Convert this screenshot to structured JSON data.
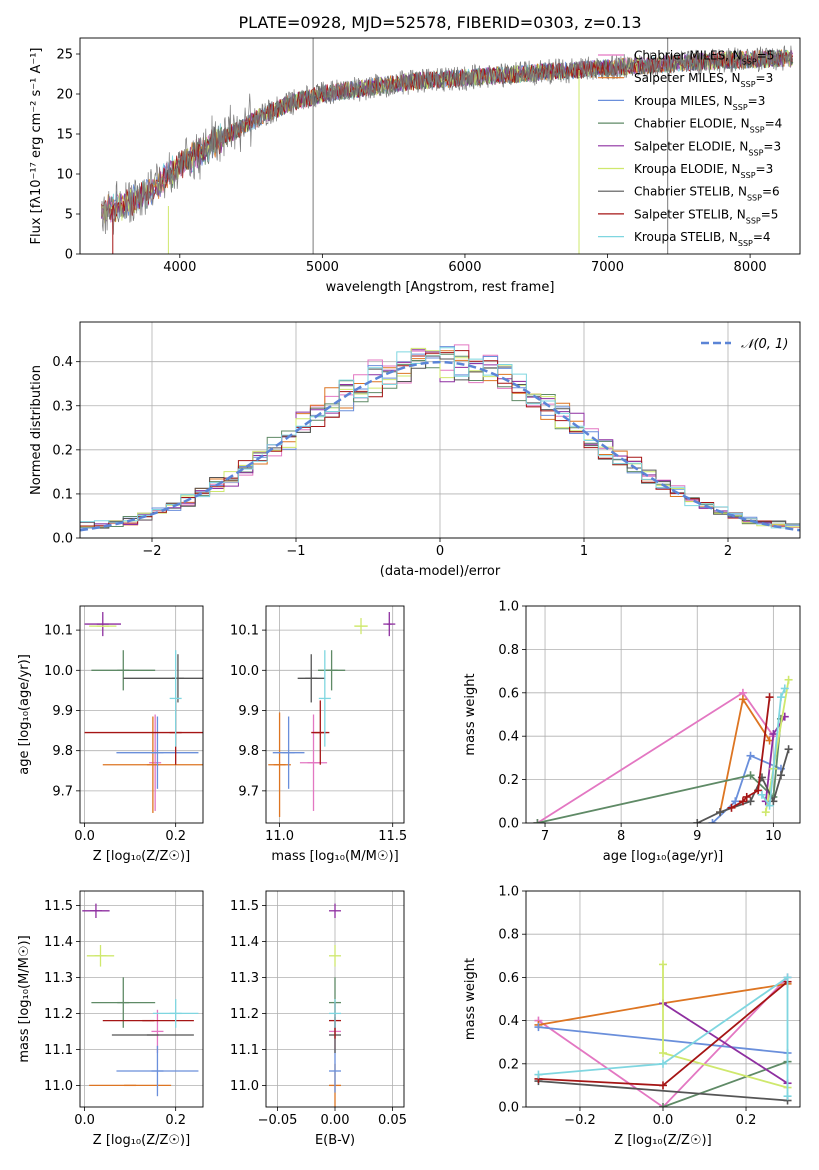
{
  "figure": {
    "title": "PLATE=0928, MJD=52578, FIBERID=0303, z=0.13"
  },
  "colors": {
    "models": [
      "#e377c2",
      "#dd7522",
      "#6a8fdb",
      "#5f8a66",
      "#8e2fa0",
      "#cfe86d",
      "#555555",
      "#a51515",
      "#7fd6e0"
    ],
    "obs": "#7a7a7a",
    "gauss": "#5b84d6"
  },
  "models": [
    {
      "name": "Chabrier MILES",
      "nssp": 5
    },
    {
      "name": "Salpeter MILES",
      "nssp": 3
    },
    {
      "name": "Kroupa MILES",
      "nssp": 3
    },
    {
      "name": "Chabrier ELODIE",
      "nssp": 4
    },
    {
      "name": "Salpeter ELODIE",
      "nssp": 3
    },
    {
      "name": "Kroupa ELODIE",
      "nssp": 3
    },
    {
      "name": "Chabrier STELIB",
      "nssp": 6
    },
    {
      "name": "Salpeter STELIB",
      "nssp": 5
    },
    {
      "name": "Kroupa STELIB",
      "nssp": 4
    }
  ],
  "chart_data": [
    {
      "id": "spectrum",
      "type": "line",
      "xlabel": "wavelength [Angstrom, rest frame]",
      "ylabel": "Flux [fλ10⁻¹⁷ erg cm⁻² s⁻¹ A⁻¹]",
      "xlim": [
        3300,
        8350
      ],
      "ylim": [
        0,
        27
      ],
      "xticks": [
        4000,
        5000,
        6000,
        7000,
        8000
      ],
      "yticks": [
        0,
        5,
        10,
        15,
        20,
        25
      ],
      "legend": "top-right",
      "continuum": {
        "x": [
          3450,
          3600,
          3800,
          4000,
          4200,
          4400,
          4600,
          4800,
          5000,
          5200,
          5400,
          5600,
          5800,
          6000,
          6200,
          6400,
          6600,
          6800,
          7000,
          7200,
          7400,
          7600,
          7800,
          8000,
          8300
        ],
        "y": [
          5.5,
          6.0,
          8.0,
          11.0,
          13.5,
          15.5,
          17.5,
          19.0,
          20.0,
          20.5,
          21.0,
          21.5,
          21.8,
          22.0,
          22.3,
          22.5,
          22.8,
          23.0,
          23.3,
          23.5,
          23.7,
          24.0,
          24.2,
          24.3,
          24.5
        ]
      },
      "spikes": [
        {
          "x": 4935,
          "y0": 0,
          "y1": 27
        },
        {
          "x": 7422,
          "y0": 0,
          "y1": 27
        },
        {
          "x": 6800,
          "y0": 0,
          "y1": 23
        }
      ]
    },
    {
      "id": "residuals",
      "type": "bar",
      "xlabel": "(data-model)/error",
      "ylabel": "Normed distribution",
      "xlim": [
        -2.5,
        2.5
      ],
      "ylim": [
        0,
        0.49
      ],
      "xticks": [
        -2,
        -1,
        0,
        1,
        2
      ],
      "yticks": [
        0.0,
        0.1,
        0.2,
        0.3,
        0.4
      ],
      "grid": true,
      "legend": "top-right",
      "gaussian_label": "𝒩(0, 1)"
    },
    {
      "id": "age-vs-Z",
      "type": "scatter",
      "xlabel": "Z [log₁₀(Z/Z☉)]",
      "ylabel": "age  [log₁₀(age/yr)]",
      "xlim": [
        -0.01,
        0.26
      ],
      "ylim": [
        9.62,
        10.16
      ],
      "xticks": [
        0.0,
        0.2
      ],
      "yticks": [
        9.7,
        9.8,
        9.9,
        10.0,
        10.1
      ],
      "grid": true,
      "points": [
        {
          "x": 0.155,
          "xe": 0.0,
          "y": 9.77,
          "ye": 0.12
        },
        {
          "x": 0.15,
          "xe": 0.11,
          "y": 9.765,
          "ye": 0.12
        },
        {
          "x": 0.16,
          "xe": 0.09,
          "y": 9.795,
          "ye": 0.09
        },
        {
          "x": 0.085,
          "xe": 0.07,
          "y": 10.0,
          "ye": 0.05
        },
        {
          "x": 0.04,
          "xe": 0.04,
          "y": 10.115,
          "ye": 0.03
        },
        {
          "x": 0.04,
          "xe": 0.03,
          "y": 10.11,
          "ye": 0.0
        },
        {
          "x": 0.205,
          "xe": 0.12,
          "y": 9.98,
          "ye": 0.06
        },
        {
          "x": 0.2,
          "xe": 0.2,
          "y": 9.845,
          "ye": 0.08
        },
        {
          "x": 0.2,
          "xe": 0.0,
          "y": 9.93,
          "ye": 0.12
        }
      ]
    },
    {
      "id": "age-vs-mass",
      "type": "scatter",
      "xlabel": "mass [log₁₀(M/M☉)]",
      "ylabel": "",
      "xlim": [
        10.94,
        11.55
      ],
      "ylim": [
        9.62,
        10.16
      ],
      "xticks": [
        11.0,
        11.5
      ],
      "yticks": [
        9.7,
        9.8,
        9.9,
        10.0,
        10.1
      ],
      "grid": true,
      "points": [
        {
          "x": 11.15,
          "xe": 0.06,
          "y": 9.77,
          "ye": 0.12
        },
        {
          "x": 11.0,
          "xe": 0.05,
          "y": 9.765,
          "ye": 0.13
        },
        {
          "x": 11.04,
          "xe": 0.07,
          "y": 9.795,
          "ye": 0.09
        },
        {
          "x": 11.23,
          "xe": 0.06,
          "y": 10.0,
          "ye": 0.05
        },
        {
          "x": 11.485,
          "xe": 0.01,
          "y": 10.115,
          "ye": 0.03
        },
        {
          "x": 11.36,
          "xe": 0.03,
          "y": 10.11,
          "ye": 0.02
        },
        {
          "x": 11.14,
          "xe": 0.06,
          "y": 9.98,
          "ye": 0.06
        },
        {
          "x": 11.18,
          "xe": 0.04,
          "y": 9.845,
          "ye": 0.08
        },
        {
          "x": 11.2,
          "xe": 0.0,
          "y": 9.93,
          "ye": 0.12
        }
      ]
    },
    {
      "id": "weight-vs-age",
      "type": "line",
      "xlabel": "age  [log₁₀(age/yr)]",
      "ylabel": "mass weight",
      "xlim": [
        6.75,
        10.35
      ],
      "ylim": [
        0,
        1.0
      ],
      "xticks": [
        7,
        8,
        9,
        10
      ],
      "yticks": [
        0.0,
        0.2,
        0.4,
        0.6,
        0.8,
        1.0
      ],
      "grid": true,
      "series": [
        {
          "x": [
            6.9,
            9.6,
            10.0
          ],
          "y": [
            0.0,
            0.6,
            0.4
          ]
        },
        {
          "x": [
            9.3,
            9.6,
            9.95
          ],
          "y": [
            0.05,
            0.57,
            0.38
          ]
        },
        {
          "x": [
            9.2,
            9.5,
            9.7,
            10.1
          ],
          "y": [
            0.0,
            0.1,
            0.31,
            0.25
          ]
        },
        {
          "x": [
            6.9,
            9.7,
            10.0,
            10.1
          ],
          "y": [
            0.0,
            0.22,
            0.12,
            0.48
          ]
        },
        {
          "x": [
            9.9,
            10.0,
            10.15
          ],
          "y": [
            0.1,
            0.41,
            0.49
          ]
        },
        {
          "x": [
            9.9,
            10.0,
            10.2
          ],
          "y": [
            0.05,
            0.25,
            0.66
          ]
        },
        {
          "x": [
            9.0,
            9.3,
            9.7,
            9.85,
            10.0,
            10.1,
            10.2
          ],
          "y": [
            0.0,
            0.05,
            0.1,
            0.21,
            0.1,
            0.22,
            0.34
          ]
        },
        {
          "x": [
            9.45,
            9.6,
            9.65,
            9.8,
            9.95
          ],
          "y": [
            0.07,
            0.1,
            0.12,
            0.15,
            0.58
          ]
        },
        {
          "x": [
            9.85,
            9.95,
            10.1,
            10.15
          ],
          "y": [
            0.13,
            0.08,
            0.58,
            0.62
          ]
        }
      ]
    },
    {
      "id": "mass-vs-Z",
      "type": "scatter",
      "xlabel": "Z [log₁₀(Z/Z☉)]",
      "ylabel": "mass [log₁₀(M/M☉)]",
      "xlim": [
        -0.01,
        0.26
      ],
      "ylim": [
        10.94,
        11.54
      ],
      "xticks": [
        0.0,
        0.2
      ],
      "yticks": [
        11.0,
        11.1,
        11.2,
        11.3,
        11.4,
        11.5
      ],
      "grid": true,
      "points": [
        {
          "x": 0.16,
          "xe": 0.0,
          "y": 11.15,
          "ye": 0.06
        },
        {
          "x": 0.1,
          "xe": 0.09,
          "y": 11.0,
          "ye": 0.0
        },
        {
          "x": 0.16,
          "xe": 0.09,
          "y": 11.04,
          "ye": 0.07
        },
        {
          "x": 0.085,
          "xe": 0.07,
          "y": 11.23,
          "ye": 0.07
        },
        {
          "x": 0.025,
          "xe": 0.03,
          "y": 11.485,
          "ye": 0.02
        },
        {
          "x": 0.035,
          "xe": 0.03,
          "y": 11.36,
          "ye": 0.03
        },
        {
          "x": 0.15,
          "xe": 0.09,
          "y": 11.14,
          "ye": 0.0
        },
        {
          "x": 0.14,
          "xe": 0.1,
          "y": 11.18,
          "ye": 0.0
        },
        {
          "x": 0.2,
          "xe": 0.05,
          "y": 11.2,
          "ye": 0.04
        }
      ]
    },
    {
      "id": "mass-vs-EBV",
      "type": "scatter",
      "xlabel": "E(B-V)",
      "ylabel": "",
      "xlim": [
        -0.06,
        0.06
      ],
      "ylim": [
        10.94,
        11.54
      ],
      "xticks": [
        -0.05,
        0.0,
        0.05
      ],
      "yticks": [
        11.0,
        11.1,
        11.2,
        11.3,
        11.4,
        11.5
      ],
      "grid": true,
      "points": [
        {
          "x": 0.0,
          "xe": 0.0,
          "y": 11.15,
          "ye": 0.05
        },
        {
          "x": 0.0,
          "xe": 0.0,
          "y": 11.0,
          "ye": 0.06
        },
        {
          "x": 0.0,
          "xe": 0.0,
          "y": 11.04,
          "ye": 0.06
        },
        {
          "x": 0.0,
          "xe": 0.0,
          "y": 11.23,
          "ye": 0.07
        },
        {
          "x": 0.0,
          "xe": 0.0,
          "y": 11.485,
          "ye": 0.02
        },
        {
          "x": 0.0,
          "xe": 0.0,
          "y": 11.36,
          "ye": 0.03
        },
        {
          "x": 0.0,
          "xe": 0.0,
          "y": 11.14,
          "ye": 0.05
        },
        {
          "x": 0.0,
          "xe": 0.0,
          "y": 11.18,
          "ye": 0.05
        },
        {
          "x": 0.0,
          "xe": 0.0,
          "y": 11.2,
          "ye": 0.04
        }
      ]
    },
    {
      "id": "weight-vs-Z",
      "type": "line",
      "xlabel": "Z [log₁₀(Z/Z☉)]",
      "ylabel": "mass weight",
      "xlim": [
        -0.33,
        0.33
      ],
      "ylim": [
        0,
        1.0
      ],
      "xticks": [
        -0.2,
        0.0,
        0.2
      ],
      "yticks": [
        0.0,
        0.2,
        0.4,
        0.6,
        0.8,
        1.0
      ],
      "grid": true,
      "series": [
        {
          "x": [
            -0.3,
            0.0,
            0.3
          ],
          "y": [
            0.4,
            0.0,
            0.6
          ]
        },
        {
          "x": [
            -0.3,
            0.0,
            0.3
          ],
          "y": [
            0.38,
            0.48,
            0.57
          ]
        },
        {
          "x": [
            -0.3,
            0.3
          ],
          "y": [
            0.37,
            0.25
          ]
        },
        {
          "x": [
            0.0,
            0.3
          ],
          "y": [
            0.0,
            0.21
          ]
        },
        {
          "x": [
            0.0,
            0.3
          ],
          "y": [
            0.48,
            0.11
          ]
        },
        {
          "x": [
            0.0,
            0.0,
            0.3
          ],
          "y": [
            0.66,
            0.25,
            0.09
          ]
        },
        {
          "x": [
            -0.3,
            0.3
          ],
          "y": [
            0.12,
            0.03
          ]
        },
        {
          "x": [
            -0.3,
            0.0,
            0.3
          ],
          "y": [
            0.13,
            0.1,
            0.58
          ]
        },
        {
          "x": [
            -0.3,
            0.0,
            0.3,
            0.3
          ],
          "y": [
            0.15,
            0.2,
            0.6,
            0.05
          ]
        }
      ]
    }
  ]
}
